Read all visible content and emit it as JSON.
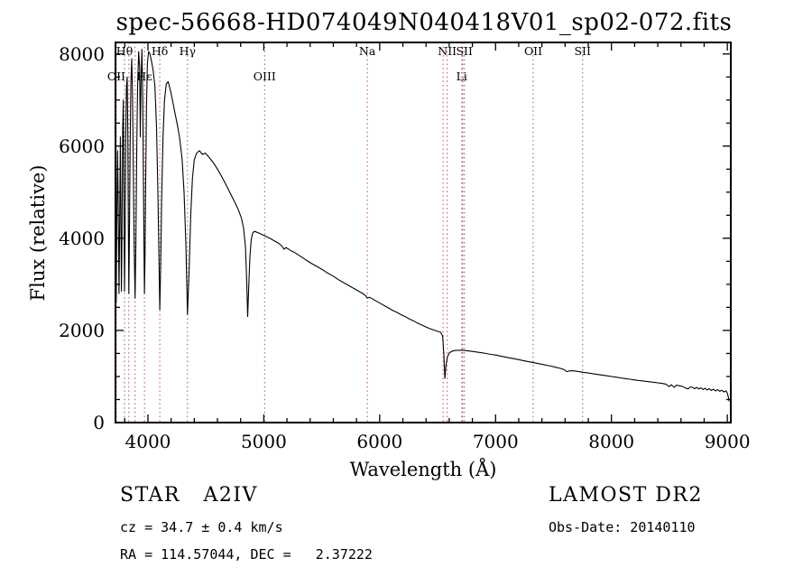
{
  "chart_data": {
    "type": "line",
    "title": "spec-56668-HD074049N040418V01_sp02-072.fits",
    "xlabel": "Wavelength (Å)",
    "ylabel": "Flux (relative)",
    "xlim": [
      3720,
      9030
    ],
    "ylim": [
      0,
      8250
    ],
    "x_ticks": [
      4000,
      5000,
      6000,
      7000,
      8000,
      9000
    ],
    "y_ticks": [
      0,
      2000,
      4000,
      6000,
      8000
    ],
    "grid": false,
    "legend_position": "none",
    "line_color": "#000000",
    "marker_line_color": "#aa5050",
    "frame_color": "#000000",
    "spectral_lines": [
      {
        "label": "OII",
        "wavelength": 3727,
        "row": 2
      },
      {
        "label": "Hθ",
        "wavelength": 3798,
        "row": 1
      },
      {
        "label": "",
        "wavelength": 3835,
        "row": 0
      },
      {
        "label": "",
        "wavelength": 3889,
        "row": 0
      },
      {
        "label": "Hε",
        "wavelength": 3970,
        "row": 2
      },
      {
        "label": "Hδ",
        "wavelength": 4102,
        "row": 1
      },
      {
        "label": "Hγ",
        "wavelength": 4341,
        "row": 1
      },
      {
        "label": "OIII",
        "wavelength": 5007,
        "row": 2
      },
      {
        "label": "Na",
        "wavelength": 5893,
        "row": 1
      },
      {
        "label": "",
        "wavelength": 6548,
        "row": 0
      },
      {
        "label": "NII",
        "wavelength": 6583,
        "row": 1
      },
      {
        "label": "Li",
        "wavelength": 6708,
        "row": 2
      },
      {
        "label": "",
        "wavelength": 6717,
        "row": 0
      },
      {
        "label": "SII",
        "wavelength": 6731,
        "row": 1
      },
      {
        "label": "OII",
        "wavelength": 7325,
        "row": 1
      },
      {
        "label": "SII",
        "wavelength": 7751,
        "row": 1
      }
    ],
    "series": [
      {
        "name": "spectrum",
        "points": [
          [
            3726,
            2600
          ],
          [
            3732,
            4400
          ],
          [
            3738,
            5900
          ],
          [
            3744,
            4600
          ],
          [
            3750,
            2800
          ],
          [
            3756,
            4200
          ],
          [
            3762,
            6200
          ],
          [
            3766,
            4800
          ],
          [
            3771,
            2850
          ],
          [
            3776,
            4000
          ],
          [
            3782,
            6400
          ],
          [
            3788,
            7000
          ],
          [
            3793,
            4800
          ],
          [
            3798,
            2850
          ],
          [
            3803,
            4200
          ],
          [
            3809,
            6200
          ],
          [
            3815,
            7300
          ],
          [
            3821,
            7500
          ],
          [
            3827,
            6200
          ],
          [
            3831,
            4200
          ],
          [
            3835,
            2800
          ],
          [
            3840,
            4000
          ],
          [
            3846,
            5900
          ],
          [
            3853,
            7400
          ],
          [
            3860,
            7900
          ],
          [
            3867,
            7100
          ],
          [
            3874,
            5400
          ],
          [
            3881,
            3800
          ],
          [
            3889,
            2700
          ],
          [
            3896,
            3900
          ],
          [
            3903,
            5800
          ],
          [
            3911,
            7300
          ],
          [
            3920,
            8050
          ],
          [
            3929,
            7700
          ],
          [
            3934,
            6200
          ],
          [
            3940,
            7400
          ],
          [
            3948,
            8100
          ],
          [
            3955,
            7000
          ],
          [
            3961,
            5200
          ],
          [
            3966,
            3800
          ],
          [
            3970,
            2800
          ],
          [
            3975,
            3700
          ],
          [
            3981,
            5300
          ],
          [
            3988,
            6900
          ],
          [
            3996,
            7800
          ],
          [
            4006,
            8050
          ],
          [
            4018,
            8000
          ],
          [
            4030,
            7850
          ],
          [
            4045,
            7650
          ],
          [
            4060,
            7300
          ],
          [
            4074,
            6400
          ],
          [
            4086,
            5000
          ],
          [
            4095,
            3600
          ],
          [
            4102,
            2450
          ],
          [
            4110,
            3400
          ],
          [
            4119,
            4900
          ],
          [
            4130,
            6200
          ],
          [
            4143,
            7000
          ],
          [
            4158,
            7350
          ],
          [
            4175,
            7400
          ],
          [
            4195,
            7200
          ],
          [
            4215,
            6950
          ],
          [
            4235,
            6700
          ],
          [
            4255,
            6450
          ],
          [
            4275,
            6150
          ],
          [
            4295,
            5700
          ],
          [
            4312,
            5000
          ],
          [
            4327,
            3900
          ],
          [
            4341,
            2350
          ],
          [
            4355,
            3300
          ],
          [
            4369,
            4500
          ],
          [
            4384,
            5300
          ],
          [
            4400,
            5700
          ],
          [
            4420,
            5850
          ],
          [
            4445,
            5900
          ],
          [
            4470,
            5820
          ],
          [
            4495,
            5850
          ],
          [
            4520,
            5780
          ],
          [
            4545,
            5700
          ],
          [
            4570,
            5620
          ],
          [
            4600,
            5500
          ],
          [
            4630,
            5370
          ],
          [
            4660,
            5230
          ],
          [
            4690,
            5080
          ],
          [
            4720,
            4930
          ],
          [
            4750,
            4780
          ],
          [
            4780,
            4620
          ],
          [
            4805,
            4450
          ],
          [
            4825,
            4230
          ],
          [
            4842,
            3800
          ],
          [
            4852,
            3100
          ],
          [
            4861,
            2300
          ],
          [
            4870,
            2950
          ],
          [
            4880,
            3600
          ],
          [
            4892,
            3980
          ],
          [
            4905,
            4120
          ],
          [
            4920,
            4150
          ],
          [
            4940,
            4130
          ],
          [
            4960,
            4110
          ],
          [
            4985,
            4080
          ],
          [
            5010,
            4050
          ],
          [
            5035,
            4020
          ],
          [
            5060,
            3990
          ],
          [
            5085,
            3950
          ],
          [
            5110,
            3920
          ],
          [
            5135,
            3880
          ],
          [
            5160,
            3820
          ],
          [
            5175,
            3760
          ],
          [
            5190,
            3800
          ],
          [
            5210,
            3770
          ],
          [
            5235,
            3730
          ],
          [
            5260,
            3700
          ],
          [
            5285,
            3660
          ],
          [
            5310,
            3620
          ],
          [
            5340,
            3570
          ],
          [
            5370,
            3520
          ],
          [
            5400,
            3470
          ],
          [
            5435,
            3420
          ],
          [
            5470,
            3370
          ],
          [
            5505,
            3320
          ],
          [
            5540,
            3260
          ],
          [
            5575,
            3210
          ],
          [
            5610,
            3160
          ],
          [
            5645,
            3100
          ],
          [
            5680,
            3050
          ],
          [
            5715,
            3000
          ],
          [
            5750,
            2950
          ],
          [
            5785,
            2900
          ],
          [
            5820,
            2850
          ],
          [
            5855,
            2800
          ],
          [
            5880,
            2750
          ],
          [
            5893,
            2700
          ],
          [
            5910,
            2720
          ],
          [
            5940,
            2680
          ],
          [
            5975,
            2630
          ],
          [
            6010,
            2580
          ],
          [
            6045,
            2530
          ],
          [
            6080,
            2480
          ],
          [
            6115,
            2430
          ],
          [
            6150,
            2390
          ],
          [
            6185,
            2340
          ],
          [
            6220,
            2300
          ],
          [
            6255,
            2250
          ],
          [
            6290,
            2210
          ],
          [
            6325,
            2160
          ],
          [
            6360,
            2120
          ],
          [
            6395,
            2080
          ],
          [
            6430,
            2040
          ],
          [
            6465,
            2010
          ],
          [
            6500,
            1980
          ],
          [
            6525,
            1960
          ],
          [
            6543,
            1880
          ],
          [
            6553,
            1500
          ],
          [
            6563,
            960
          ],
          [
            6573,
            1250
          ],
          [
            6585,
            1430
          ],
          [
            6600,
            1510
          ],
          [
            6625,
            1550
          ],
          [
            6655,
            1565
          ],
          [
            6690,
            1570
          ],
          [
            6725,
            1565
          ],
          [
            6760,
            1555
          ],
          [
            6800,
            1545
          ],
          [
            6840,
            1530
          ],
          [
            6880,
            1515
          ],
          [
            6920,
            1500
          ],
          [
            6960,
            1480
          ],
          [
            7000,
            1465
          ],
          [
            7040,
            1445
          ],
          [
            7080,
            1425
          ],
          [
            7120,
            1405
          ],
          [
            7160,
            1385
          ],
          [
            7200,
            1365
          ],
          [
            7240,
            1345
          ],
          [
            7280,
            1325
          ],
          [
            7320,
            1305
          ],
          [
            7360,
            1285
          ],
          [
            7400,
            1265
          ],
          [
            7440,
            1245
          ],
          [
            7480,
            1225
          ],
          [
            7520,
            1200
          ],
          [
            7560,
            1175
          ],
          [
            7590,
            1150
          ],
          [
            7615,
            1105
          ],
          [
            7640,
            1125
          ],
          [
            7680,
            1120
          ],
          [
            7720,
            1105
          ],
          [
            7760,
            1090
          ],
          [
            7800,
            1075
          ],
          [
            7840,
            1060
          ],
          [
            7880,
            1045
          ],
          [
            7920,
            1030
          ],
          [
            7960,
            1015
          ],
          [
            8000,
            1000
          ],
          [
            8040,
            985
          ],
          [
            8080,
            970
          ],
          [
            8120,
            955
          ],
          [
            8160,
            940
          ],
          [
            8200,
            925
          ],
          [
            8240,
            912
          ],
          [
            8280,
            900
          ],
          [
            8320,
            888
          ],
          [
            8360,
            875
          ],
          [
            8400,
            862
          ],
          [
            8440,
            848
          ],
          [
            8470,
            835
          ],
          [
            8498,
            780
          ],
          [
            8515,
            822
          ],
          [
            8542,
            765
          ],
          [
            8560,
            812
          ],
          [
            8585,
            800
          ],
          [
            8610,
            788
          ],
          [
            8640,
            748
          ],
          [
            8662,
            730
          ],
          [
            8682,
            775
          ],
          [
            8700,
            765
          ],
          [
            8718,
            735
          ],
          [
            8736,
            762
          ],
          [
            8754,
            728
          ],
          [
            8772,
            755
          ],
          [
            8790,
            718
          ],
          [
            8808,
            745
          ],
          [
            8826,
            708
          ],
          [
            8844,
            735
          ],
          [
            8862,
            698
          ],
          [
            8880,
            726
          ],
          [
            8898,
            688
          ],
          [
            8916,
            715
          ],
          [
            8934,
            678
          ],
          [
            8952,
            702
          ],
          [
            8970,
            665
          ],
          [
            8988,
            690
          ],
          [
            9000,
            640
          ],
          [
            9008,
            560
          ],
          [
            9016,
            460
          ]
        ]
      }
    ]
  },
  "footer": {
    "class_line": "STAR   A2IV",
    "survey": "LAMOST DR2",
    "cz_line": "cz = 34.7 ± 0.4 km/s",
    "obs_date": "Obs-Date: 20140110",
    "radec_line": "RA = 114.57044, DEC =   2.37222"
  }
}
